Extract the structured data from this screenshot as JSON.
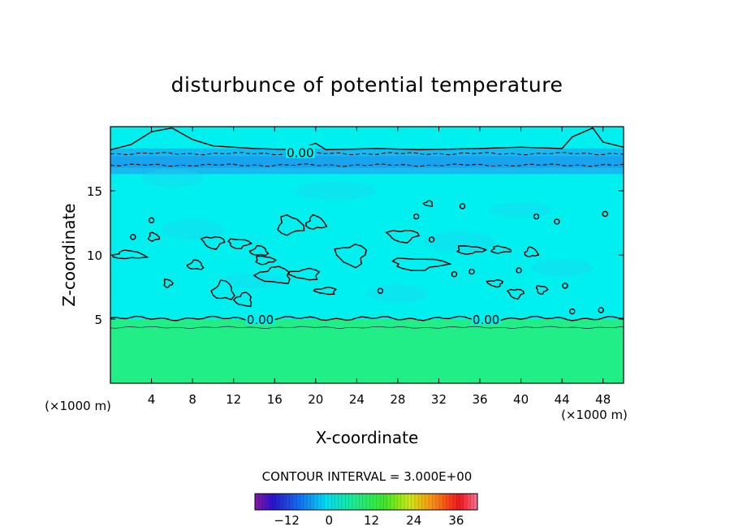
{
  "chart_data": {
    "type": "heatmap",
    "title": "disturbunce of potential temperature",
    "xlabel": "X-coordinate",
    "ylabel": "Z-coordinate",
    "x_unit_left": "(×1000 m)",
    "x_unit_right": "(×1000 m)",
    "xlim": [
      0,
      50
    ],
    "ylim": [
      0,
      20
    ],
    "x_ticks": [
      4,
      8,
      12,
      16,
      20,
      24,
      28,
      32,
      36,
      40,
      44,
      48
    ],
    "x_tick_labels": [
      "4",
      "8",
      "12",
      "16",
      "20",
      "24",
      "28",
      "32",
      "36",
      "40",
      "44",
      "48"
    ],
    "y_ticks": [
      5,
      10,
      15
    ],
    "y_tick_labels": [
      "5",
      "10",
      "15"
    ],
    "contour_interval_text": "CONTOUR INTERVAL = 3.000E+00",
    "contour_labels": [
      {
        "text": "0.00",
        "x": 18.5,
        "y": 18.0
      },
      {
        "text": "0.00",
        "x": 14.6,
        "y": 5.0
      },
      {
        "text": "0.00",
        "x": 36.6,
        "y": 5.0
      }
    ],
    "colorbar": {
      "min": -21,
      "max": 42,
      "ticks": [
        -12,
        0,
        12,
        24,
        36
      ],
      "tick_labels": [
        "−12",
        "0",
        "12",
        "24",
        "36"
      ]
    },
    "fields": {
      "upper_stratosphere_value": 0.5,
      "negative_band_value": -3.5,
      "troposphere_value": 0.3,
      "lower_layer_value": 6.5
    },
    "colors": {
      "cyan": "#00f0f0",
      "cyan_light": "#33f3e6",
      "band": "#1ab0f0",
      "band_dark": "#1888e8",
      "lower": "#22ee88",
      "contour": "#000000"
    }
  }
}
